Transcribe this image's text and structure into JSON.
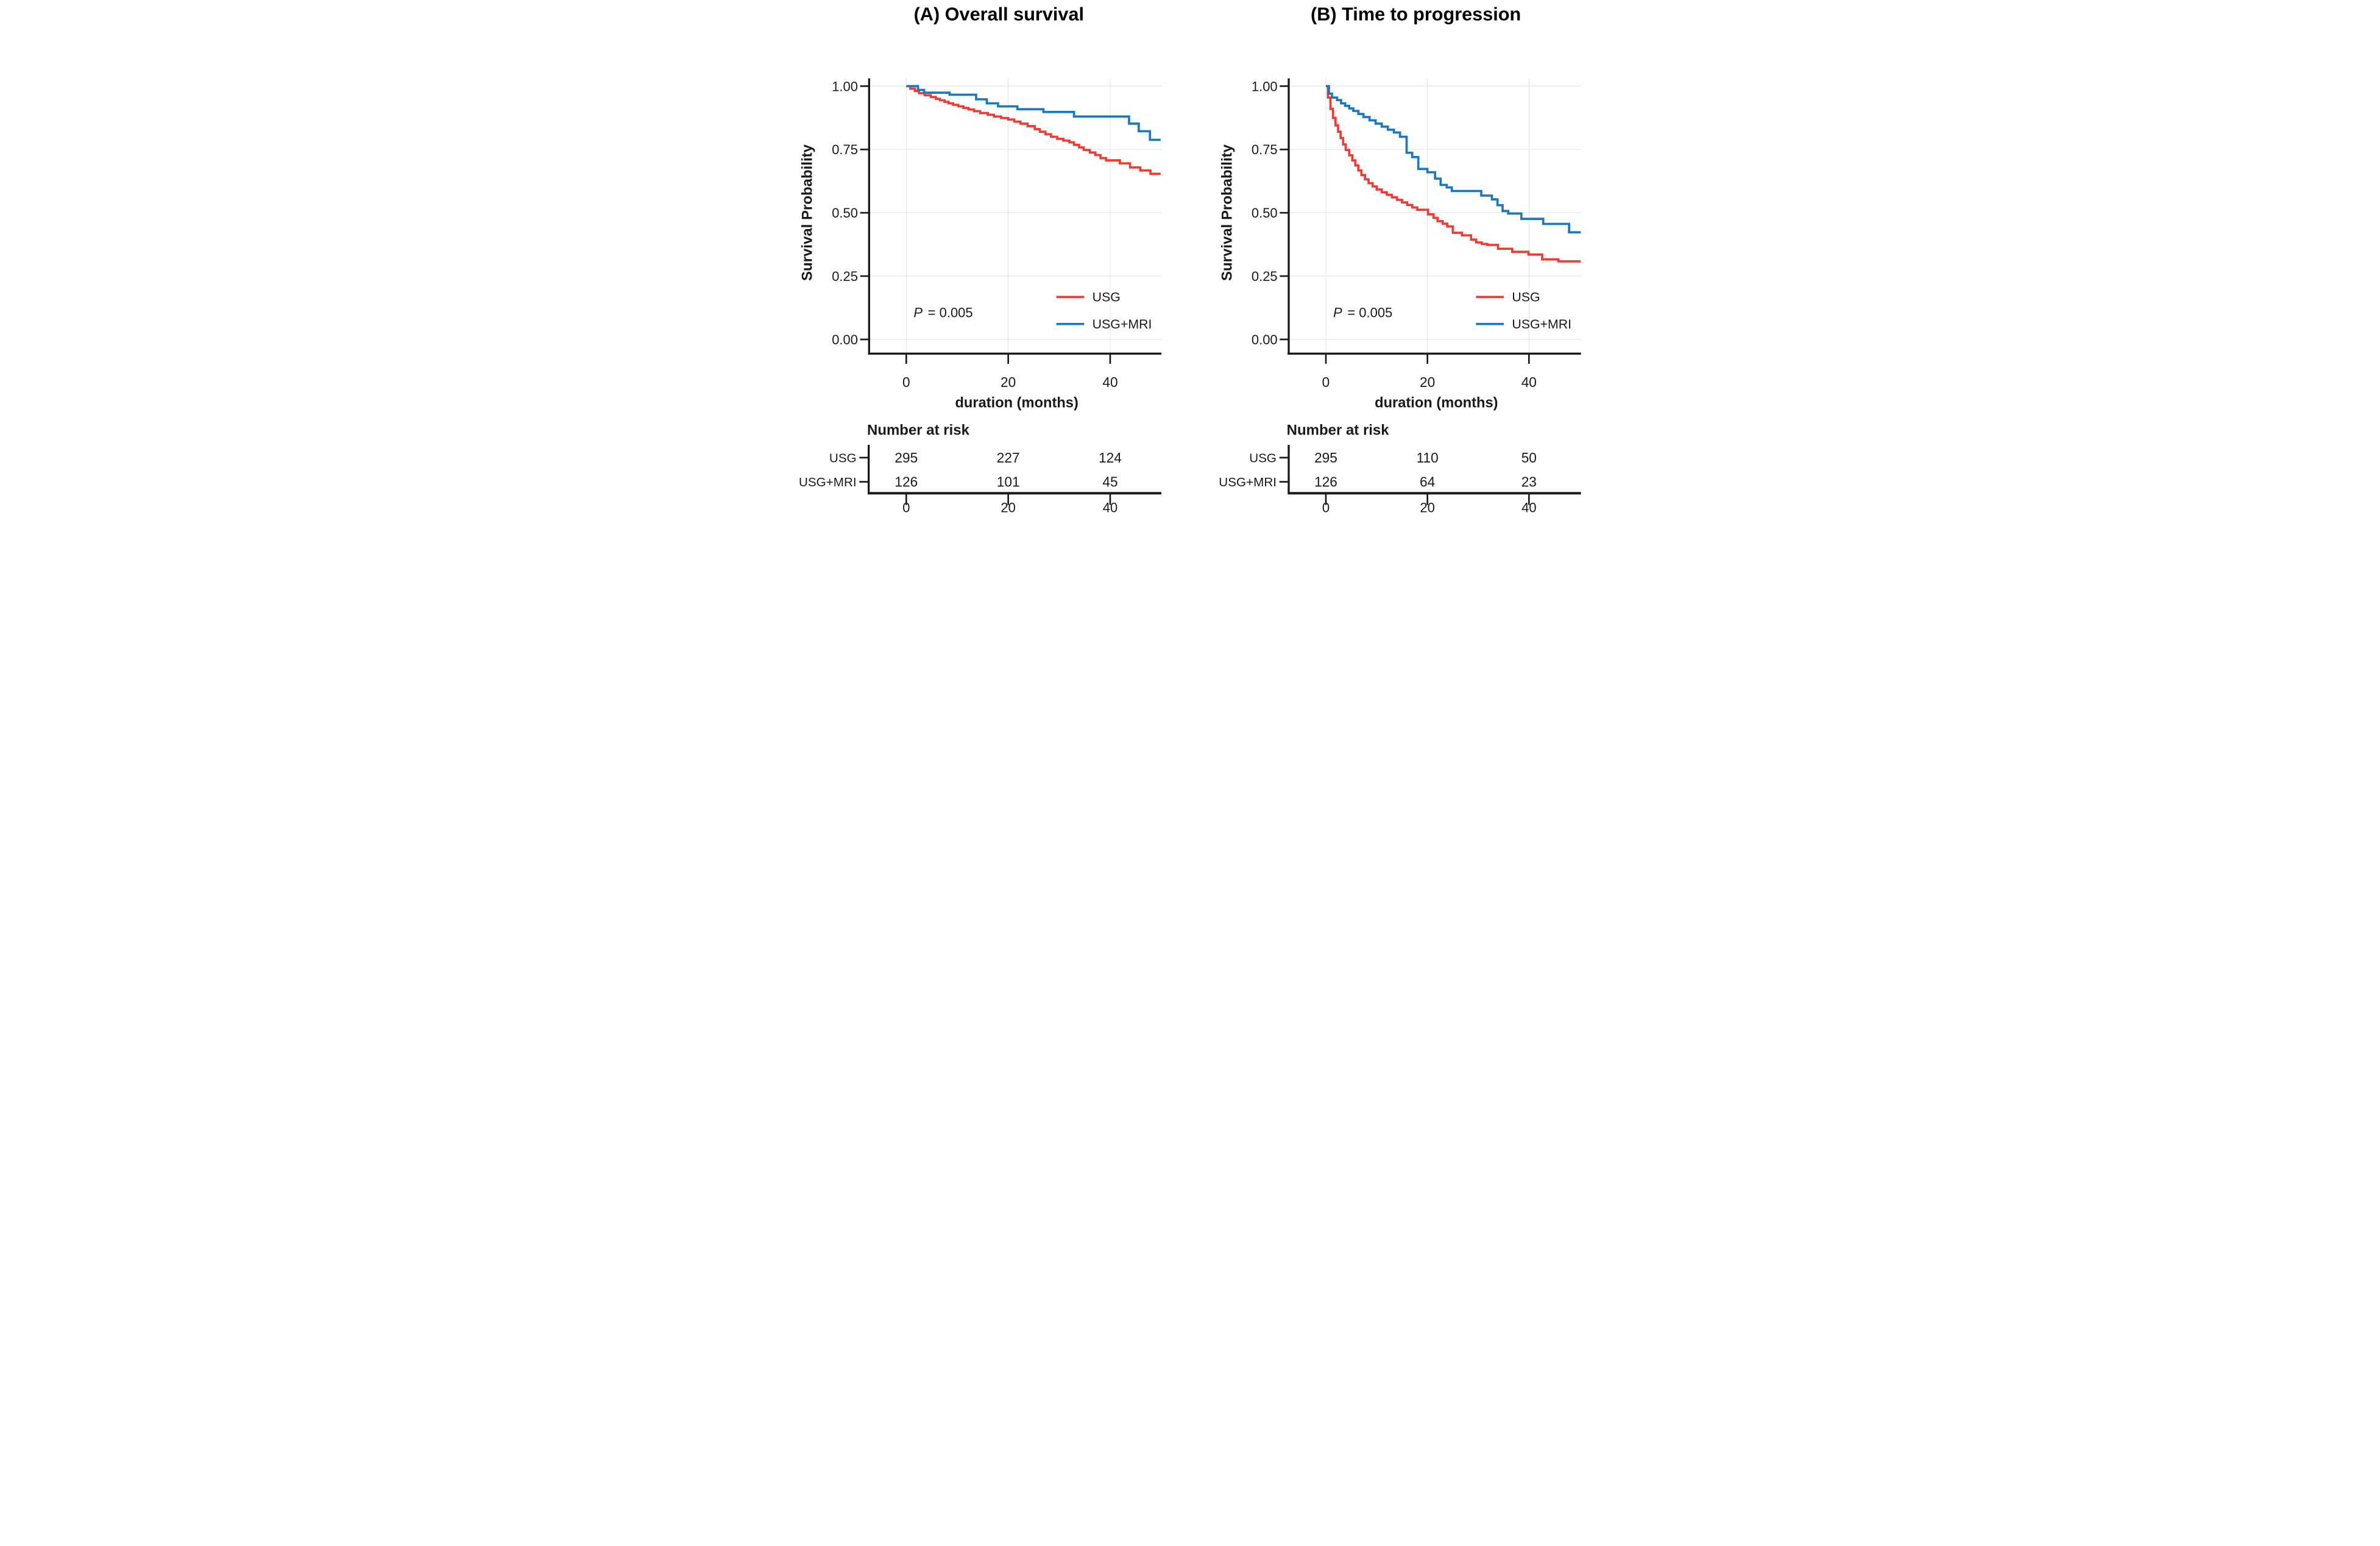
{
  "figure": {
    "panels": [
      {
        "id": "A",
        "title": "(A) Overall survival",
        "ylabel": "Survival Probability",
        "xlabel": "duration (months)",
        "p_label": "P",
        "p_value": "= 0.005",
        "legend": [
          {
            "name": "USG",
            "color": "#EF3B31"
          },
          {
            "name": "USG+MRI",
            "color": "#1B78BE"
          }
        ],
        "y_ticks": [
          {
            "value": 1.0,
            "label": "1.00"
          },
          {
            "value": 0.75,
            "label": "0.75"
          },
          {
            "value": 0.5,
            "label": "0.50"
          },
          {
            "value": 0.25,
            "label": "0.25"
          },
          {
            "value": 0.0,
            "label": "0.00"
          }
        ],
        "x_ticks": [
          {
            "value": 0,
            "label": "0"
          },
          {
            "value": 20,
            "label": "20"
          },
          {
            "value": 40,
            "label": "40"
          }
        ],
        "risk_table": {
          "header": "Number at risk",
          "times": [
            "0",
            "20",
            "40"
          ],
          "rows": [
            {
              "label": "USG",
              "color": "#EF3B31",
              "values": [
                "295",
                "227",
                "124"
              ]
            },
            {
              "label": "USG+MRI",
              "color": "#1B78BE",
              "values": [
                "126",
                "101",
                "45"
              ]
            }
          ]
        }
      },
      {
        "id": "B",
        "title": "(B) Time to progression",
        "ylabel": "Survival Probability",
        "xlabel": "duration (months)",
        "p_label": "P",
        "p_value": "= 0.005",
        "legend": [
          {
            "name": "USG",
            "color": "#EF3B31"
          },
          {
            "name": "USG+MRI",
            "color": "#1B78BE"
          }
        ],
        "y_ticks": [
          {
            "value": 1.0,
            "label": "1.00"
          },
          {
            "value": 0.75,
            "label": "0.75"
          },
          {
            "value": 0.5,
            "label": "0.50"
          },
          {
            "value": 0.25,
            "label": "0.25"
          },
          {
            "value": 0.0,
            "label": "0.00"
          }
        ],
        "x_ticks": [
          {
            "value": 0,
            "label": "0"
          },
          {
            "value": 20,
            "label": "20"
          },
          {
            "value": 40,
            "label": "40"
          }
        ],
        "risk_table": {
          "header": "Number at risk",
          "times": [
            "0",
            "20",
            "40"
          ],
          "rows": [
            {
              "label": "USG",
              "color": "#EF3B31",
              "values": [
                "295",
                "110",
                "50"
              ]
            },
            {
              "label": "USG+MRI",
              "color": "#1B78BE",
              "values": [
                "126",
                "64",
                "23"
              ]
            }
          ]
        }
      }
    ]
  },
  "chart_data": [
    {
      "type": "line",
      "subtype": "kaplan-meier-step",
      "title": "(A) Overall survival",
      "xlabel": "duration (months)",
      "ylabel": "Survival Probability",
      "xlim": [
        0,
        50
      ],
      "ylim": [
        0,
        1
      ],
      "x_ticks": [
        0,
        20,
        40
      ],
      "y_ticks": [
        0.0,
        0.25,
        0.5,
        0.75,
        1.0
      ],
      "grid": true,
      "annotation": "P = 0.005",
      "legend_position": "inside-bottom-right",
      "series": [
        {
          "name": "USG",
          "color": "#EF3B31",
          "steps": [
            [
              0,
              1.0
            ],
            [
              0.8,
              0.99
            ],
            [
              1.7,
              0.981
            ],
            [
              2.5,
              0.972
            ],
            [
              3.6,
              0.964
            ],
            [
              4.8,
              0.957
            ],
            [
              5.8,
              0.95
            ],
            [
              6.6,
              0.944
            ],
            [
              7.5,
              0.938
            ],
            [
              8.3,
              0.932
            ],
            [
              9.2,
              0.926
            ],
            [
              10.2,
              0.92
            ],
            [
              11.2,
              0.914
            ],
            [
              12.2,
              0.908
            ],
            [
              13.3,
              0.901
            ],
            [
              14.5,
              0.894
            ],
            [
              16.0,
              0.887
            ],
            [
              17.2,
              0.88
            ],
            [
              18.6,
              0.874
            ],
            [
              20.0,
              0.868
            ],
            [
              21.2,
              0.86
            ],
            [
              22.4,
              0.852
            ],
            [
              23.8,
              0.842
            ],
            [
              25.2,
              0.83
            ],
            [
              26.2,
              0.82
            ],
            [
              27.3,
              0.81
            ],
            [
              28.4,
              0.8
            ],
            [
              29.6,
              0.792
            ],
            [
              30.8,
              0.785
            ],
            [
              32.0,
              0.778
            ],
            [
              32.9,
              0.768
            ],
            [
              33.9,
              0.758
            ],
            [
              34.8,
              0.748
            ],
            [
              36.0,
              0.738
            ],
            [
              37.1,
              0.728
            ],
            [
              38.1,
              0.716
            ],
            [
              39.2,
              0.707
            ],
            [
              41.9,
              0.695
            ],
            [
              43.9,
              0.679
            ],
            [
              45.9,
              0.667
            ],
            [
              47.9,
              0.654
            ],
            [
              49.9,
              0.654
            ]
          ]
        },
        {
          "name": "USG+MRI",
          "color": "#1B78BE",
          "steps": [
            [
              0,
              1.0
            ],
            [
              2.3,
              0.985
            ],
            [
              3.5,
              0.974
            ],
            [
              8.5,
              0.966
            ],
            [
              13.7,
              0.948
            ],
            [
              15.8,
              0.932
            ],
            [
              18.0,
              0.92
            ],
            [
              21.8,
              0.909
            ],
            [
              26.9,
              0.898
            ],
            [
              32.9,
              0.88
            ],
            [
              43.7,
              0.852
            ],
            [
              45.6,
              0.822
            ],
            [
              47.8,
              0.788
            ],
            [
              49.9,
              0.788
            ]
          ]
        }
      ],
      "number_at_risk": {
        "times": [
          0,
          20,
          40
        ],
        "groups": [
          {
            "name": "USG",
            "counts": [
              295,
              227,
              124
            ]
          },
          {
            "name": "USG+MRI",
            "counts": [
              126,
              101,
              45
            ]
          }
        ]
      }
    },
    {
      "type": "line",
      "subtype": "kaplan-meier-step",
      "title": "(B) Time to progression",
      "xlabel": "duration (months)",
      "ylabel": "Survival Probability",
      "xlim": [
        0,
        50
      ],
      "ylim": [
        0,
        1
      ],
      "x_ticks": [
        0,
        20,
        40
      ],
      "y_ticks": [
        0.0,
        0.25,
        0.5,
        0.75,
        1.0
      ],
      "grid": true,
      "annotation": "P = 0.005",
      "legend_position": "inside-bottom-right",
      "series": [
        {
          "name": "USG",
          "color": "#EF3B31",
          "steps": [
            [
              0,
              1.0
            ],
            [
              0.4,
              0.955
            ],
            [
              0.9,
              0.91
            ],
            [
              1.4,
              0.875
            ],
            [
              1.9,
              0.845
            ],
            [
              2.4,
              0.82
            ],
            [
              2.9,
              0.795
            ],
            [
              3.4,
              0.77
            ],
            [
              3.9,
              0.748
            ],
            [
              4.6,
              0.727
            ],
            [
              5.2,
              0.707
            ],
            [
              5.8,
              0.687
            ],
            [
              6.4,
              0.667
            ],
            [
              7.0,
              0.649
            ],
            [
              7.7,
              0.632
            ],
            [
              8.4,
              0.617
            ],
            [
              9.2,
              0.604
            ],
            [
              10.0,
              0.592
            ],
            [
              11.0,
              0.581
            ],
            [
              12.0,
              0.571
            ],
            [
              13.0,
              0.561
            ],
            [
              14.0,
              0.551
            ],
            [
              15.0,
              0.541
            ],
            [
              16.0,
              0.531
            ],
            [
              17.0,
              0.521
            ],
            [
              18.0,
              0.512
            ],
            [
              20.1,
              0.494
            ],
            [
              21.2,
              0.48
            ],
            [
              22.0,
              0.467
            ],
            [
              23.0,
              0.457
            ],
            [
              23.9,
              0.446
            ],
            [
              25.0,
              0.421
            ],
            [
              26.8,
              0.411
            ],
            [
              28.6,
              0.394
            ],
            [
              29.6,
              0.383
            ],
            [
              30.7,
              0.377
            ],
            [
              31.8,
              0.373
            ],
            [
              33.9,
              0.358
            ],
            [
              36.7,
              0.346
            ],
            [
              39.9,
              0.335
            ],
            [
              42.6,
              0.316
            ],
            [
              45.8,
              0.308
            ],
            [
              50.2,
              0.308
            ]
          ]
        },
        {
          "name": "USG+MRI",
          "color": "#1B78BE",
          "steps": [
            [
              0,
              1.0
            ],
            [
              0.6,
              0.97
            ],
            [
              1.2,
              0.955
            ],
            [
              2.2,
              0.945
            ],
            [
              3.0,
              0.932
            ],
            [
              3.8,
              0.922
            ],
            [
              4.6,
              0.912
            ],
            [
              5.4,
              0.902
            ],
            [
              6.4,
              0.89
            ],
            [
              7.4,
              0.878
            ],
            [
              8.6,
              0.865
            ],
            [
              9.8,
              0.852
            ],
            [
              11.0,
              0.84
            ],
            [
              12.2,
              0.828
            ],
            [
              13.4,
              0.817
            ],
            [
              14.6,
              0.8
            ],
            [
              15.9,
              0.737
            ],
            [
              17.0,
              0.72
            ],
            [
              18.2,
              0.673
            ],
            [
              20.0,
              0.66
            ],
            [
              21.5,
              0.635
            ],
            [
              22.6,
              0.61
            ],
            [
              23.8,
              0.6
            ],
            [
              24.8,
              0.586
            ],
            [
              30.6,
              0.568
            ],
            [
              32.7,
              0.553
            ],
            [
              33.8,
              0.53
            ],
            [
              34.8,
              0.507
            ],
            [
              35.9,
              0.497
            ],
            [
              38.5,
              0.476
            ],
            [
              42.8,
              0.456
            ],
            [
              47.9,
              0.423
            ],
            [
              50.2,
              0.423
            ]
          ]
        }
      ],
      "number_at_risk": {
        "times": [
          0,
          20,
          40
        ],
        "groups": [
          {
            "name": "USG",
            "counts": [
              295,
              110,
              50
            ]
          },
          {
            "name": "USG+MRI",
            "counts": [
              126,
              64,
              23
            ]
          }
        ]
      }
    }
  ]
}
